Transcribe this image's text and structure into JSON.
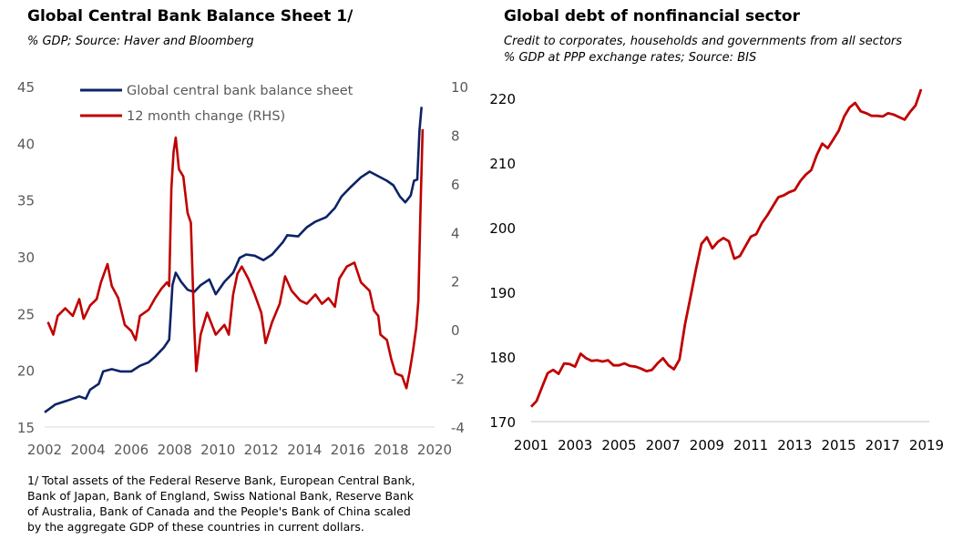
{
  "chart_data": [
    {
      "type": "line",
      "title": "Global Central Bank Balance Sheet 1/",
      "subtitle": "% GDP; Source: Haver and Bloomberg",
      "footnote": [
        "1/ Total assets of the Federal Reserve Bank, European Central Bank,",
        "Bank of Japan, Bank of England, Swiss National Bank, Reserve Bank",
        "of Australia, Bank of Canada and the People's Bank of China scaled",
        "by the aggregate GDP of these countries in current dollars."
      ],
      "xlim": [
        2002,
        2020
      ],
      "ylim": [
        15,
        45
      ],
      "y2lim": [
        -4,
        10
      ],
      "xticks": [
        "2002",
        "2004",
        "2006",
        "2008",
        "2010",
        "2012",
        "2014",
        "2016",
        "2018",
        "2020"
      ],
      "yticks": [
        "15",
        "20",
        "25",
        "30",
        "35",
        "40",
        "45"
      ],
      "y2ticks": [
        "-4",
        "-2",
        "0",
        "2",
        "4",
        "6",
        "8",
        "10"
      ],
      "legend_position": "top",
      "series": [
        {
          "name": "Global central bank balance sheet",
          "axis": "left",
          "color": "#0d2366",
          "x": [
            2002.0,
            2002.5,
            2003.0,
            2003.6,
            2003.9,
            2004.1,
            2004.5,
            2004.7,
            2005.1,
            2005.5,
            2006.0,
            2006.4,
            2006.8,
            2007.1,
            2007.5,
            2007.75,
            2007.9,
            2008.05,
            2008.3,
            2008.6,
            2008.9,
            2009.2,
            2009.6,
            2009.9,
            2010.3,
            2010.7,
            2011.0,
            2011.3,
            2011.7,
            2012.1,
            2012.5,
            2013.0,
            2013.2,
            2013.7,
            2014.1,
            2014.5,
            2015.0,
            2015.4,
            2015.7,
            2016.1,
            2016.6,
            2017.0,
            2017.4,
            2017.8,
            2018.1,
            2018.4,
            2018.65,
            2018.9,
            2019.05,
            2019.2,
            2019.3,
            2019.4
          ],
          "y": [
            16.3,
            17.0,
            17.3,
            17.7,
            17.5,
            18.3,
            18.8,
            19.9,
            20.1,
            19.9,
            19.9,
            20.4,
            20.7,
            21.2,
            22.0,
            22.7,
            27.5,
            28.6,
            27.8,
            27.1,
            26.9,
            27.5,
            28.0,
            26.7,
            27.8,
            28.6,
            29.9,
            30.2,
            30.1,
            29.7,
            30.2,
            31.3,
            31.9,
            31.8,
            32.6,
            33.1,
            33.5,
            34.3,
            35.3,
            36.1,
            37.0,
            37.5,
            37.1,
            36.7,
            36.3,
            35.3,
            34.8,
            35.4,
            36.7,
            36.8,
            41.1,
            43.2
          ]
        },
        {
          "name": "12 month change (RHS)",
          "axis": "right",
          "color": "#c00000",
          "x": [
            2002.15,
            2002.4,
            2002.6,
            2002.95,
            2003.3,
            2003.6,
            2003.8,
            2004.1,
            2004.4,
            2004.6,
            2004.9,
            2005.1,
            2005.4,
            2005.7,
            2006.0,
            2006.2,
            2006.4,
            2006.8,
            2007.1,
            2007.4,
            2007.65,
            2007.75,
            2007.85,
            2007.95,
            2008.05,
            2008.2,
            2008.4,
            2008.6,
            2008.75,
            2008.9,
            2009.0,
            2009.2,
            2009.5,
            2009.9,
            2010.3,
            2010.5,
            2010.7,
            2010.9,
            2011.1,
            2011.4,
            2011.7,
            2012.0,
            2012.2,
            2012.5,
            2012.85,
            2013.1,
            2013.4,
            2013.8,
            2014.1,
            2014.5,
            2014.8,
            2015.1,
            2015.4,
            2015.6,
            2015.95,
            2016.3,
            2016.6,
            2017.0,
            2017.2,
            2017.4,
            2017.5,
            2017.8,
            2018.0,
            2018.2,
            2018.5,
            2018.7,
            2018.85,
            2019.0,
            2019.15,
            2019.25,
            2019.35,
            2019.45
          ],
          "y": [
            0.32,
            -0.2,
            0.57,
            0.88,
            0.57,
            1.26,
            0.45,
            1.0,
            1.26,
            1.95,
            2.7,
            1.8,
            1.3,
            0.2,
            -0.05,
            -0.42,
            0.57,
            0.82,
            1.3,
            1.7,
            1.95,
            1.8,
            5.8,
            7.3,
            7.9,
            6.6,
            6.3,
            4.8,
            4.4,
            0.2,
            -1.7,
            -0.2,
            0.7,
            -0.2,
            0.2,
            -0.2,
            1.45,
            2.3,
            2.6,
            2.1,
            1.45,
            0.7,
            -0.55,
            0.32,
            1.07,
            2.2,
            1.6,
            1.2,
            1.07,
            1.45,
            1.07,
            1.3,
            0.95,
            2.1,
            2.6,
            2.76,
            1.95,
            1.6,
            0.8,
            0.57,
            -0.2,
            -0.42,
            -1.2,
            -1.8,
            -1.9,
            -2.4,
            -1.7,
            -0.9,
            0.07,
            1.2,
            4.9,
            8.25
          ]
        }
      ]
    },
    {
      "type": "line",
      "title": "Global debt of nonfinancial sector",
      "subtitle": [
        "Credit to corporates, households and governments from all sectors",
        "% GDP at PPP exchange rates; Source: BIS"
      ],
      "xlim": [
        2001,
        2019
      ],
      "ylim": [
        170,
        220
      ],
      "xticks": [
        "2001",
        "2003",
        "2005",
        "2007",
        "2009",
        "2011",
        "2013",
        "2015",
        "2017",
        "2019"
      ],
      "yticks": [
        "170",
        "180",
        "190",
        "200",
        "210",
        "220"
      ],
      "series": [
        {
          "name": "Global debt of nonfinancial sector",
          "color": "#c00000",
          "x_start": 2001.0,
          "x_step": 0.25,
          "y": [
            172.3,
            173.2,
            175.4,
            177.5,
            178.0,
            177.4,
            179.0,
            178.9,
            178.5,
            180.5,
            179.8,
            179.4,
            179.5,
            179.3,
            179.5,
            178.7,
            178.7,
            179.0,
            178.6,
            178.5,
            178.2,
            177.8,
            178.0,
            179.0,
            179.8,
            178.7,
            178.1,
            179.6,
            185.0,
            189.2,
            193.5,
            197.5,
            198.5,
            196.8,
            197.8,
            198.4,
            197.9,
            195.2,
            195.6,
            197.1,
            198.6,
            199.0,
            200.7,
            201.9,
            203.3,
            204.7,
            205.0,
            205.5,
            205.8,
            207.2,
            208.2,
            208.9,
            211.2,
            213.0,
            212.3,
            213.6,
            215.0,
            217.2,
            218.6,
            219.3,
            218.0,
            217.7,
            217.3,
            217.3,
            217.2,
            217.7,
            217.5,
            217.1,
            216.7,
            217.9,
            218.9,
            221.4
          ]
        }
      ]
    }
  ]
}
